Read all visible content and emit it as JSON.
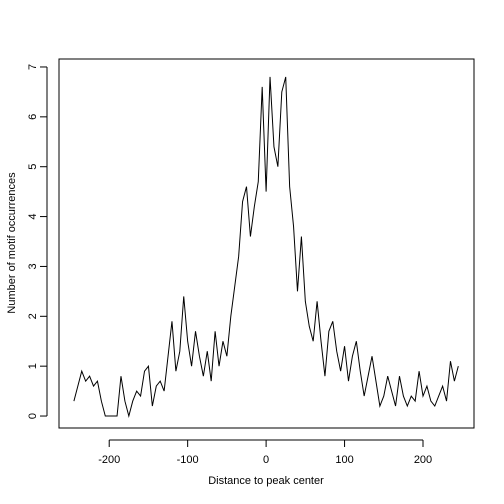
{
  "chart_data": {
    "type": "line",
    "xlabel": "Distance to peak center",
    "ylabel": "Number of motif occurrences",
    "color": "#000000",
    "x": [
      -245,
      -240,
      -235,
      -230,
      -225,
      -220,
      -215,
      -210,
      -205,
      -200,
      -195,
      -190,
      -185,
      -180,
      -175,
      -170,
      -165,
      -160,
      -155,
      -150,
      -145,
      -140,
      -135,
      -130,
      -125,
      -120,
      -115,
      -110,
      -105,
      -100,
      -95,
      -90,
      -85,
      -80,
      -75,
      -70,
      -65,
      -60,
      -55,
      -50,
      -45,
      -40,
      -35,
      -30,
      -25,
      -20,
      -15,
      -10,
      -5,
      0,
      5,
      10,
      15,
      20,
      25,
      30,
      35,
      40,
      45,
      50,
      55,
      60,
      65,
      70,
      75,
      80,
      85,
      90,
      95,
      100,
      105,
      110,
      115,
      120,
      125,
      130,
      135,
      140,
      145,
      150,
      155,
      160,
      165,
      170,
      175,
      180,
      185,
      190,
      195,
      200,
      205,
      210,
      215,
      220,
      225,
      230,
      235,
      240,
      245
    ],
    "values": [
      0.3,
      0.6,
      0.9,
      0.7,
      0.8,
      0.6,
      0.7,
      0.3,
      0,
      0,
      0,
      0,
      0.8,
      0.3,
      0,
      0.3,
      0.5,
      0.4,
      0.9,
      1.0,
      0.2,
      0.6,
      0.7,
      0.5,
      1.2,
      1.9,
      0.9,
      1.3,
      2.4,
      1.5,
      1.0,
      1.7,
      1.2,
      0.8,
      1.3,
      0.7,
      1.7,
      1.0,
      1.5,
      1.2,
      2.0,
      2.6,
      3.2,
      4.3,
      4.6,
      3.6,
      4.2,
      4.7,
      6.6,
      4.5,
      6.8,
      5.4,
      5.0,
      6.5,
      6.8,
      4.6,
      3.8,
      2.5,
      3.6,
      2.3,
      1.8,
      1.5,
      2.3,
      1.5,
      0.8,
      1.7,
      1.9,
      1.3,
      0.9,
      1.4,
      0.7,
      1.2,
      1.5,
      0.9,
      0.4,
      0.8,
      1.2,
      0.7,
      0.2,
      0.4,
      0.8,
      0.5,
      0.2,
      0.8,
      0.4,
      0.2,
      0.4,
      0.3,
      0.9,
      0.4,
      0.6,
      0.3,
      0.2,
      0.4,
      0.6,
      0.3,
      1.1,
      0.7,
      1.0
    ],
    "xlim": [
      -264,
      265
    ],
    "ylim": [
      -0.24,
      7.16
    ],
    "xticks": [
      -200,
      -100,
      0,
      100,
      200
    ],
    "yticks": [
      0,
      1,
      2,
      3,
      4,
      5,
      6,
      7
    ]
  }
}
